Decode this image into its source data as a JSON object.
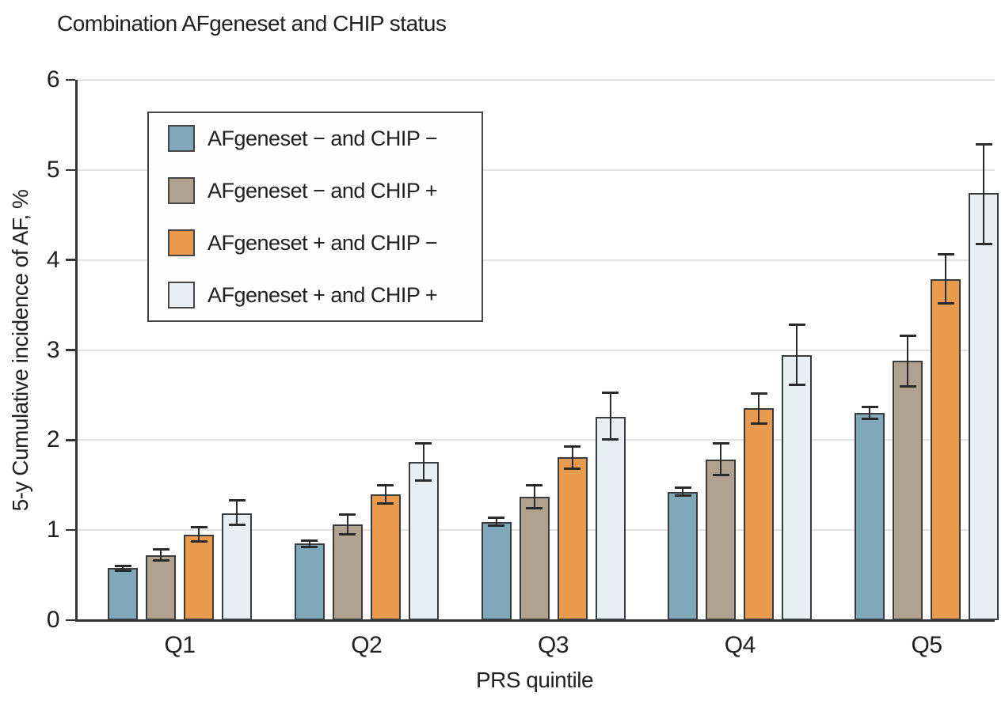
{
  "chart_data": {
    "type": "bar",
    "title": "Combination AFgeneset and CHIP status",
    "xlabel": "PRS quintile",
    "ylabel": "5-y Cumulative incidence of AF, %",
    "ylim": [
      0,
      6
    ],
    "yticks": [
      "0",
      "1",
      "2",
      "3",
      "4",
      "5",
      "6"
    ],
    "grid": true,
    "legend_position": "upper-left inside plot",
    "error_bars": "95% CI, capped",
    "categories": [
      "Q1",
      "Q2",
      "Q3",
      "Q4",
      "Q5"
    ],
    "series": [
      {
        "name": "AFgeneset − and CHIP −",
        "color": "#7FA8BB",
        "values": [
          0.58,
          0.85,
          1.09,
          1.42,
          2.3
        ],
        "ci_low": [
          0.55,
          0.81,
          1.05,
          1.38,
          2.24
        ],
        "ci_high": [
          0.6,
          0.88,
          1.14,
          1.47,
          2.37
        ]
      },
      {
        "name": "AFgeneset − and CHIP +",
        "color": "#B1A290",
        "values": [
          0.72,
          1.06,
          1.37,
          1.78,
          2.88
        ],
        "ci_low": [
          0.66,
          0.95,
          1.24,
          1.61,
          2.6
        ],
        "ci_high": [
          0.79,
          1.17,
          1.5,
          1.96,
          3.16
        ]
      },
      {
        "name": "AFgeneset + and CHIP −",
        "color": "#E99A4C",
        "values": [
          0.95,
          1.4,
          1.81,
          2.35,
          3.79
        ],
        "ci_low": [
          0.87,
          1.3,
          1.68,
          2.18,
          3.52
        ],
        "ci_high": [
          1.03,
          1.5,
          1.93,
          2.52,
          4.06
        ]
      },
      {
        "name": "AFgeneset + and CHIP +",
        "color": "#E9EEF2",
        "values": [
          1.19,
          1.76,
          2.26,
          2.94,
          4.74
        ],
        "ci_low": [
          1.06,
          1.55,
          2.01,
          2.61,
          4.18
        ],
        "ci_high": [
          1.33,
          1.96,
          2.53,
          3.28,
          5.28
        ]
      }
    ]
  },
  "style": {
    "bar_border_color": "#383C3F",
    "error_bar_color": "#2A2A2A",
    "axis_color": "#333333",
    "gridline_color": "#E2E2E2",
    "text_color": "#212121",
    "legend_border_color": "#454545",
    "legend_bg_color": "#FDFDFD",
    "background": "#FFFFFF"
  }
}
